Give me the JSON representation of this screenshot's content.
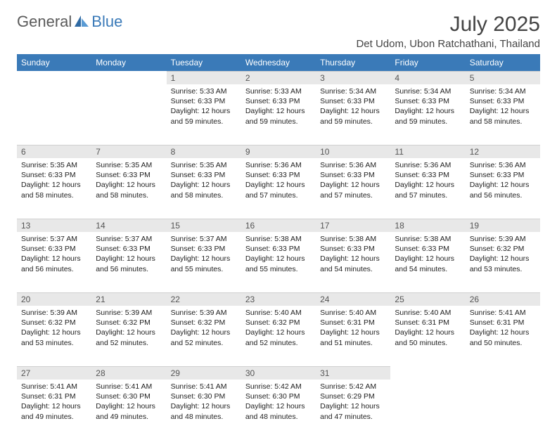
{
  "brand": {
    "part1": "General",
    "part2": "Blue"
  },
  "title": "July 2025",
  "location": "Det Udom, Ubon Ratchathani, Thailand",
  "colors": {
    "header_bg": "#3a7ab8",
    "header_text": "#ffffff",
    "daynum_bg": "#e8e8e8",
    "body_text": "#222222",
    "logo_gray": "#5a5a5a",
    "logo_blue": "#3a7ab8"
  },
  "day_labels": [
    "Sunday",
    "Monday",
    "Tuesday",
    "Wednesday",
    "Thursday",
    "Friday",
    "Saturday"
  ],
  "weeks": [
    [
      null,
      null,
      {
        "n": "1",
        "sunrise": "5:33 AM",
        "sunset": "6:33 PM",
        "daylight": "12 hours and 59 minutes."
      },
      {
        "n": "2",
        "sunrise": "5:33 AM",
        "sunset": "6:33 PM",
        "daylight": "12 hours and 59 minutes."
      },
      {
        "n": "3",
        "sunrise": "5:34 AM",
        "sunset": "6:33 PM",
        "daylight": "12 hours and 59 minutes."
      },
      {
        "n": "4",
        "sunrise": "5:34 AM",
        "sunset": "6:33 PM",
        "daylight": "12 hours and 59 minutes."
      },
      {
        "n": "5",
        "sunrise": "5:34 AM",
        "sunset": "6:33 PM",
        "daylight": "12 hours and 58 minutes."
      }
    ],
    [
      {
        "n": "6",
        "sunrise": "5:35 AM",
        "sunset": "6:33 PM",
        "daylight": "12 hours and 58 minutes."
      },
      {
        "n": "7",
        "sunrise": "5:35 AM",
        "sunset": "6:33 PM",
        "daylight": "12 hours and 58 minutes."
      },
      {
        "n": "8",
        "sunrise": "5:35 AM",
        "sunset": "6:33 PM",
        "daylight": "12 hours and 58 minutes."
      },
      {
        "n": "9",
        "sunrise": "5:36 AM",
        "sunset": "6:33 PM",
        "daylight": "12 hours and 57 minutes."
      },
      {
        "n": "10",
        "sunrise": "5:36 AM",
        "sunset": "6:33 PM",
        "daylight": "12 hours and 57 minutes."
      },
      {
        "n": "11",
        "sunrise": "5:36 AM",
        "sunset": "6:33 PM",
        "daylight": "12 hours and 57 minutes."
      },
      {
        "n": "12",
        "sunrise": "5:36 AM",
        "sunset": "6:33 PM",
        "daylight": "12 hours and 56 minutes."
      }
    ],
    [
      {
        "n": "13",
        "sunrise": "5:37 AM",
        "sunset": "6:33 PM",
        "daylight": "12 hours and 56 minutes."
      },
      {
        "n": "14",
        "sunrise": "5:37 AM",
        "sunset": "6:33 PM",
        "daylight": "12 hours and 56 minutes."
      },
      {
        "n": "15",
        "sunrise": "5:37 AM",
        "sunset": "6:33 PM",
        "daylight": "12 hours and 55 minutes."
      },
      {
        "n": "16",
        "sunrise": "5:38 AM",
        "sunset": "6:33 PM",
        "daylight": "12 hours and 55 minutes."
      },
      {
        "n": "17",
        "sunrise": "5:38 AM",
        "sunset": "6:33 PM",
        "daylight": "12 hours and 54 minutes."
      },
      {
        "n": "18",
        "sunrise": "5:38 AM",
        "sunset": "6:33 PM",
        "daylight": "12 hours and 54 minutes."
      },
      {
        "n": "19",
        "sunrise": "5:39 AM",
        "sunset": "6:32 PM",
        "daylight": "12 hours and 53 minutes."
      }
    ],
    [
      {
        "n": "20",
        "sunrise": "5:39 AM",
        "sunset": "6:32 PM",
        "daylight": "12 hours and 53 minutes."
      },
      {
        "n": "21",
        "sunrise": "5:39 AM",
        "sunset": "6:32 PM",
        "daylight": "12 hours and 52 minutes."
      },
      {
        "n": "22",
        "sunrise": "5:39 AM",
        "sunset": "6:32 PM",
        "daylight": "12 hours and 52 minutes."
      },
      {
        "n": "23",
        "sunrise": "5:40 AM",
        "sunset": "6:32 PM",
        "daylight": "12 hours and 52 minutes."
      },
      {
        "n": "24",
        "sunrise": "5:40 AM",
        "sunset": "6:31 PM",
        "daylight": "12 hours and 51 minutes."
      },
      {
        "n": "25",
        "sunrise": "5:40 AM",
        "sunset": "6:31 PM",
        "daylight": "12 hours and 50 minutes."
      },
      {
        "n": "26",
        "sunrise": "5:41 AM",
        "sunset": "6:31 PM",
        "daylight": "12 hours and 50 minutes."
      }
    ],
    [
      {
        "n": "27",
        "sunrise": "5:41 AM",
        "sunset": "6:31 PM",
        "daylight": "12 hours and 49 minutes."
      },
      {
        "n": "28",
        "sunrise": "5:41 AM",
        "sunset": "6:30 PM",
        "daylight": "12 hours and 49 minutes."
      },
      {
        "n": "29",
        "sunrise": "5:41 AM",
        "sunset": "6:30 PM",
        "daylight": "12 hours and 48 minutes."
      },
      {
        "n": "30",
        "sunrise": "5:42 AM",
        "sunset": "6:30 PM",
        "daylight": "12 hours and 48 minutes."
      },
      {
        "n": "31",
        "sunrise": "5:42 AM",
        "sunset": "6:29 PM",
        "daylight": "12 hours and 47 minutes."
      },
      null,
      null
    ]
  ],
  "labels": {
    "sunrise_prefix": "Sunrise: ",
    "sunset_prefix": "Sunset: ",
    "daylight_prefix": "Daylight: "
  }
}
